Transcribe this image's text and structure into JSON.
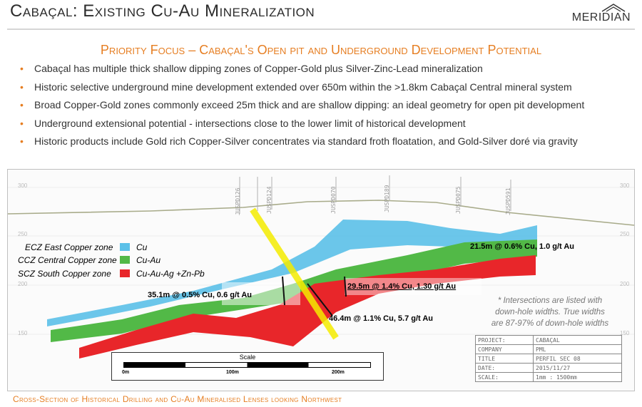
{
  "header": {
    "title": "Cabaçal: Existing Cu-Au Mineralization",
    "logo_text": "MERIDIAN"
  },
  "subtitle": "Priority Focus – Cabaçal's Open pit and Underground Development Potential",
  "bullets": [
    "Cabaçal has multiple thick shallow dipping zones of Copper-Gold plus Silver-Zinc-Lead mineralization",
    "Historic selective underground mine development extended over 650m within the >1.8km Cabaçal Central mineral system",
    "Broad Copper-Gold zones commonly exceed 25m thick and are shallow dipping: an ideal geometry for open pit development",
    "Underground extensional potential - intersections close to the lower limit of historical development",
    "Historic products include Gold rich Copper-Silver concentrates via standard froth floatation, and Gold-Silver doré via gravity"
  ],
  "section": {
    "legend": [
      {
        "zone": "ECZ East Copper zone",
        "metal": "Cu",
        "color": "#5bc0e8"
      },
      {
        "zone": "CCZ Central Copper zone",
        "metal": "Cu-Au",
        "color": "#52b947"
      },
      {
        "zone": "SCZ South Copper zone",
        "metal": "Cu-Au-Ag +Zn-Pb",
        "color": "#e8262a"
      }
    ],
    "intersections": [
      "21.5m @ 0.6% Cu, 1.0 g/t Au",
      "35.1m @ 0.5% Cu, 0.6 g/t Au",
      "29.5m @ 1.4% Cu, 1.30 g/t Au",
      "46.4m @ 1.1% Cu, 5.7 g/t Au"
    ],
    "note": [
      "* Intersections are listed with",
      "down-hole widths. True widths",
      "are 87-97% of down-hole widths"
    ],
    "drillholes": [
      "JUSPD126",
      "JUSPD124",
      "JUSPD070",
      "JUSPD189",
      "JUSPD075",
      "JUSPD591"
    ],
    "elevations": [
      "300",
      "250",
      "200",
      "150"
    ],
    "scale": {
      "title": "Scale",
      "ticks": [
        "0m",
        "100m",
        "200m"
      ]
    },
    "title_block": [
      {
        "key": "PROJECT:",
        "value": "CABAÇAL"
      },
      {
        "key": "COMPANY",
        "value": "PML"
      },
      {
        "key": "TITLE",
        "value": "PERFIL SEC 08"
      },
      {
        "key": "DATE:",
        "value": "2015/11/27"
      },
      {
        "key": "SCALE:",
        "value": "1mm : 1500mm"
      }
    ]
  },
  "caption": "Cross-Section of Historical Drilling and Cu-Au Mineralised Lenses looking Northwest"
}
